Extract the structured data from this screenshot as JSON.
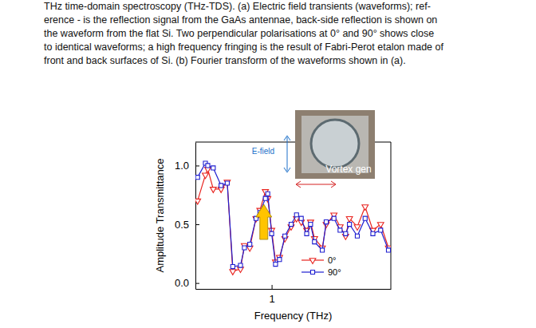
{
  "caption": [
    "THz time-domain spectroscopy (THz-TDS). (a) Electric field transients (waveforms); ref-",
    "erence - is the reflection signal from the GaAs antennae, back-side reflection is shown on",
    "the waveform from the flat Si. Two perpendicular polarisations at 0° and 90° shows close",
    "to identical waveforms; a high frequency fringing is the result of Fabri-Perot etalon made of",
    "front and back surfaces of Si. (b) Fourier transform of the waveforms shown in (a)."
  ],
  "chart_data": {
    "type": "line",
    "x_label": "Frequency (THz)",
    "y_label": "Amplitude Transmittance",
    "log": "x",
    "xlim": [
      0.49,
      3.05
    ],
    "xticks": [
      1
    ],
    "ylim": [
      -0.05,
      1.2
    ],
    "yticks": [
      {
        "value": 0,
        "label": "0.0"
      },
      {
        "value": 0.5,
        "label": "0.5"
      },
      {
        "value": 1,
        "label": "1.0"
      }
    ],
    "legend": "lower right",
    "x": [
      0.5,
      0.538,
      0.55,
      0.579,
      0.623,
      0.66,
      0.695,
      0.747,
      0.775,
      0.815,
      0.864,
      0.896,
      0.943,
      0.964,
      1.0,
      1.037,
      1.076,
      1.132,
      1.2,
      1.262,
      1.319,
      1.388,
      1.439,
      1.493,
      1.606,
      1.666,
      1.791,
      1.897,
      1.998,
      2.071,
      2.229,
      2.398,
      2.578,
      2.773,
      2.983
    ],
    "series": [
      {
        "name": "0°",
        "color": "#e8231f",
        "marker": "triangle-down",
        "line_style": "solid",
        "values": [
          0.7,
          0.92,
          0.97,
          0.8,
          0.8,
          0.86,
          0.1,
          0.12,
          0.32,
          0.3,
          0.55,
          0.62,
          0.78,
          0.72,
          0.45,
          0.18,
          0.22,
          0.38,
          0.48,
          0.55,
          0.52,
          0.45,
          0.52,
          0.38,
          0.3,
          0.5,
          0.58,
          0.48,
          0.4,
          0.55,
          0.48,
          0.65,
          0.45,
          0.5,
          0.3
        ]
      },
      {
        "name": "90°",
        "color": "#1f1fd0",
        "marker": "square",
        "line_style": "solid",
        "values": [
          0.9,
          1.02,
          1.0,
          0.98,
          0.83,
          0.85,
          0.14,
          0.15,
          0.3,
          0.33,
          0.55,
          0.6,
          0.72,
          0.76,
          0.42,
          0.16,
          0.2,
          0.4,
          0.5,
          0.58,
          0.55,
          0.42,
          0.5,
          0.35,
          0.28,
          0.52,
          0.55,
          0.45,
          0.42,
          0.5,
          0.4,
          0.55,
          0.42,
          0.45,
          0.28
        ]
      }
    ],
    "annotations": [
      "E-field",
      "Vortex gen"
    ]
  }
}
